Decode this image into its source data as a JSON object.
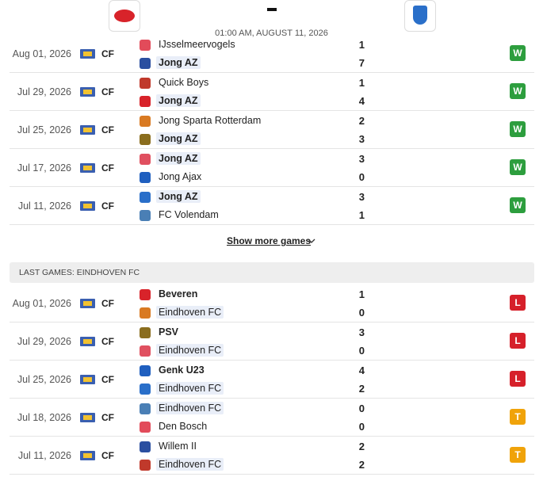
{
  "header": {
    "datetime": "01:00 AM, AUGUST 11, 2026"
  },
  "sections": [
    {
      "games": [
        {
          "date": "Aug 01, 2026",
          "competition": "CF",
          "home": {
            "name": "IJsselmeervogels",
            "score": 1
          },
          "away": {
            "name": "Jong AZ",
            "score": 7
          },
          "result": "W"
        },
        {
          "date": "Jul 29, 2026",
          "competition": "CF",
          "home": {
            "name": "Quick Boys",
            "score": 1
          },
          "away": {
            "name": "Jong AZ",
            "score": 4
          },
          "result": "W"
        },
        {
          "date": "Jul 25, 2026",
          "competition": "CF",
          "home": {
            "name": "Jong Sparta Rotterdam",
            "score": 2
          },
          "away": {
            "name": "Jong AZ",
            "score": 3
          },
          "result": "W"
        },
        {
          "date": "Jul 17, 2026",
          "competition": "CF",
          "home": {
            "name": "Jong AZ",
            "score": 3
          },
          "away": {
            "name": "Jong Ajax",
            "score": 0
          },
          "result": "W"
        },
        {
          "date": "Jul 11, 2026",
          "competition": "CF",
          "home": {
            "name": "Jong AZ",
            "score": 3
          },
          "away": {
            "name": "FC Volendam",
            "score": 1
          },
          "result": "W"
        }
      ],
      "show_more": "Show more games"
    },
    {
      "title": "LAST GAMES: EINDHOVEN FC",
      "games": [
        {
          "date": "Aug 01, 2026",
          "competition": "CF",
          "home": {
            "name": "Beveren",
            "score": 1
          },
          "away": {
            "name": "Eindhoven FC",
            "score": 0
          },
          "result": "L"
        },
        {
          "date": "Jul 29, 2026",
          "competition": "CF",
          "home": {
            "name": "PSV",
            "score": 3
          },
          "away": {
            "name": "Eindhoven FC",
            "score": 0
          },
          "result": "L"
        },
        {
          "date": "Jul 25, 2026",
          "competition": "CF",
          "home": {
            "name": "Genk U23",
            "score": 4
          },
          "away": {
            "name": "Eindhoven FC",
            "score": 2
          },
          "result": "L"
        },
        {
          "date": "Jul 18, 2026",
          "competition": "CF",
          "home": {
            "name": "Eindhoven FC",
            "score": 0
          },
          "away": {
            "name": "Den Bosch",
            "score": 0
          },
          "result": "T"
        },
        {
          "date": "Jul 11, 2026",
          "competition": "CF",
          "home": {
            "name": "Willem II",
            "score": 2
          },
          "away": {
            "name": "Eindhoven FC",
            "score": 2
          },
          "result": "T"
        }
      ]
    }
  ]
}
